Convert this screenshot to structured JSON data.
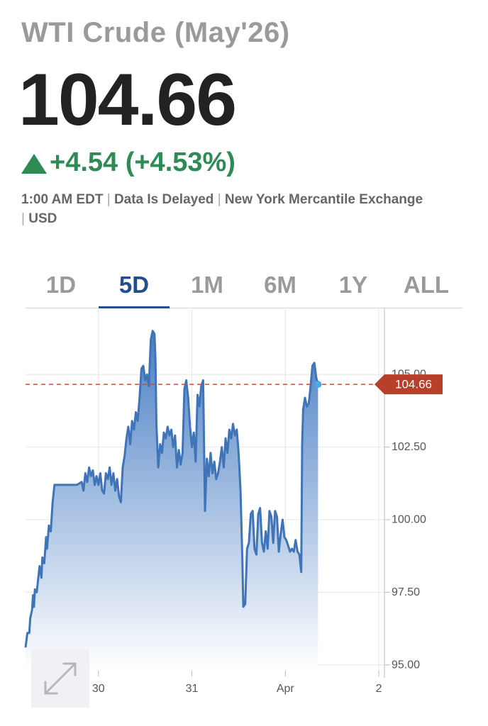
{
  "quote": {
    "title": "WTI Crude (May'26)",
    "price": "104.66",
    "change": "+4.54 (+4.53%)",
    "change_color": "#2f8a55",
    "meta": {
      "time": "1:00 AM EDT",
      "delay": "Data Is Delayed",
      "exchange": "New York Mercantile Exchange",
      "currency": "USD"
    }
  },
  "tabs": [
    {
      "label": "1D",
      "active": false
    },
    {
      "label": "5D",
      "active": true
    },
    {
      "label": "1M",
      "active": false
    },
    {
      "label": "6M",
      "active": false
    },
    {
      "label": "1Y",
      "active": false
    },
    {
      "label": "ALL",
      "active": false
    }
  ],
  "chart_data": {
    "type": "area",
    "series_color": "#3f74b8",
    "current_value": 104.66,
    "current_label": "104.66",
    "current_label_color": "#b8402a",
    "ylim": [
      94.8,
      107.3
    ],
    "y_ticks": [
      95.0,
      97.5,
      100.0,
      102.5,
      105.0
    ],
    "y_tick_labels": [
      "95.00",
      "97.50",
      "100.00",
      "102.50",
      "105.00"
    ],
    "x_ticks": [
      {
        "x": 0.78,
        "label": "30"
      },
      {
        "x": 1.78,
        "label": "31"
      },
      {
        "x": 2.78,
        "label": "Apr"
      },
      {
        "x": 3.78,
        "label": "2"
      }
    ],
    "xlim": [
      0,
      3.84
    ],
    "grid": true,
    "points": [
      [
        0.0,
        95.6
      ],
      [
        0.02,
        96.1
      ],
      [
        0.04,
        96.1
      ],
      [
        0.05,
        96.6
      ],
      [
        0.07,
        96.9
      ],
      [
        0.08,
        97.4
      ],
      [
        0.09,
        97.0
      ],
      [
        0.1,
        97.6
      ],
      [
        0.12,
        97.5
      ],
      [
        0.13,
        97.8
      ],
      [
        0.15,
        98.4
      ],
      [
        0.17,
        98.0
      ],
      [
        0.18,
        98.7
      ],
      [
        0.2,
        98.5
      ],
      [
        0.22,
        99.4
      ],
      [
        0.23,
        99.0
      ],
      [
        0.25,
        99.8
      ],
      [
        0.27,
        99.6
      ],
      [
        0.29,
        100.6
      ],
      [
        0.31,
        101.2
      ],
      [
        0.35,
        101.2
      ],
      [
        0.45,
        101.2
      ],
      [
        0.55,
        101.2
      ],
      [
        0.6,
        101.3
      ],
      [
        0.62,
        101.0
      ],
      [
        0.64,
        101.6
      ],
      [
        0.66,
        101.3
      ],
      [
        0.68,
        101.8
      ],
      [
        0.7,
        101.5
      ],
      [
        0.72,
        101.7
      ],
      [
        0.74,
        101.2
      ],
      [
        0.76,
        101.5
      ],
      [
        0.78,
        101.2
      ],
      [
        0.8,
        101.6
      ],
      [
        0.82,
        101.0
      ],
      [
        0.84,
        100.9
      ],
      [
        0.86,
        101.6
      ],
      [
        0.88,
        101.4
      ],
      [
        0.9,
        101.8
      ],
      [
        0.92,
        101.2
      ],
      [
        0.94,
        101.6
      ],
      [
        0.96,
        101.0
      ],
      [
        0.98,
        101.4
      ],
      [
        1.0,
        100.8
      ],
      [
        1.02,
        100.6
      ],
      [
        1.04,
        101.8
      ],
      [
        1.06,
        102.2
      ],
      [
        1.08,
        102.8
      ],
      [
        1.1,
        103.2
      ],
      [
        1.12,
        102.6
      ],
      [
        1.14,
        103.4
      ],
      [
        1.16,
        103.1
      ],
      [
        1.18,
        103.7
      ],
      [
        1.2,
        103.4
      ],
      [
        1.22,
        104.2
      ],
      [
        1.24,
        105.2
      ],
      [
        1.26,
        105.3
      ],
      [
        1.28,
        104.8
      ],
      [
        1.3,
        105.0
      ],
      [
        1.32,
        104.6
      ],
      [
        1.34,
        106.2
      ],
      [
        1.36,
        106.5
      ],
      [
        1.38,
        106.4
      ],
      [
        1.39,
        105.5
      ],
      [
        1.4,
        103.3
      ],
      [
        1.42,
        101.8
      ],
      [
        1.44,
        102.6
      ],
      [
        1.46,
        102.3
      ],
      [
        1.48,
        103.0
      ],
      [
        1.5,
        102.8
      ],
      [
        1.52,
        103.2
      ],
      [
        1.54,
        102.9
      ],
      [
        1.56,
        103.1
      ],
      [
        1.58,
        102.5
      ],
      [
        1.6,
        102.9
      ],
      [
        1.62,
        101.8
      ],
      [
        1.64,
        102.4
      ],
      [
        1.66,
        101.9
      ],
      [
        1.68,
        102.3
      ],
      [
        1.7,
        104.5
      ],
      [
        1.72,
        104.8
      ],
      [
        1.74,
        104.2
      ],
      [
        1.76,
        103.2
      ],
      [
        1.78,
        102.5
      ],
      [
        1.8,
        103.0
      ],
      [
        1.82,
        102.0
      ],
      [
        1.84,
        104.3
      ],
      [
        1.86,
        103.9
      ],
      [
        1.88,
        104.6
      ],
      [
        1.9,
        104.8
      ],
      [
        1.92,
        100.3
      ],
      [
        1.94,
        102.1
      ],
      [
        1.96,
        101.5
      ],
      [
        1.98,
        102.3
      ],
      [
        2.0,
        101.6
      ],
      [
        2.02,
        102.0
      ],
      [
        2.04,
        101.4
      ],
      [
        2.06,
        101.6
      ],
      [
        2.08,
        102.0
      ],
      [
        2.1,
        102.5
      ],
      [
        2.12,
        101.8
      ],
      [
        2.14,
        102.8
      ],
      [
        2.16,
        102.3
      ],
      [
        2.18,
        103.1
      ],
      [
        2.2,
        102.8
      ],
      [
        2.22,
        103.3
      ],
      [
        2.24,
        102.9
      ],
      [
        2.26,
        103.1
      ],
      [
        2.28,
        102.3
      ],
      [
        2.3,
        101.0
      ],
      [
        2.32,
        98.6
      ],
      [
        2.33,
        97.0
      ],
      [
        2.35,
        97.1
      ],
      [
        2.37,
        99.0
      ],
      [
        2.39,
        99.2
      ],
      [
        2.41,
        100.2
      ],
      [
        2.43,
        100.3
      ],
      [
        2.45,
        99.0
      ],
      [
        2.47,
        98.8
      ],
      [
        2.49,
        100.2
      ],
      [
        2.51,
        100.4
      ],
      [
        2.53,
        99.2
      ],
      [
        2.55,
        98.9
      ],
      [
        2.57,
        99.6
      ],
      [
        2.59,
        99.0
      ],
      [
        2.61,
        100.3
      ],
      [
        2.63,
        100.1
      ],
      [
        2.65,
        99.2
      ],
      [
        2.67,
        100.3
      ],
      [
        2.69,
        100.1
      ],
      [
        2.71,
        98.9
      ],
      [
        2.73,
        99.5
      ],
      [
        2.75,
        100.0
      ],
      [
        2.77,
        99.4
      ],
      [
        2.79,
        99.3
      ],
      [
        2.81,
        99.1
      ],
      [
        2.83,
        98.9
      ],
      [
        2.85,
        99.0
      ],
      [
        2.87,
        98.9
      ],
      [
        2.89,
        99.3
      ],
      [
        2.91,
        98.9
      ],
      [
        2.93,
        98.8
      ],
      [
        2.95,
        98.2
      ],
      [
        2.96,
        102.6
      ],
      [
        2.97,
        103.8
      ],
      [
        2.99,
        104.2
      ],
      [
        3.01,
        103.9
      ],
      [
        3.03,
        104.0
      ],
      [
        3.05,
        104.6
      ],
      [
        3.07,
        105.3
      ],
      [
        3.09,
        105.4
      ],
      [
        3.11,
        104.9
      ],
      [
        3.13,
        104.66
      ]
    ]
  }
}
